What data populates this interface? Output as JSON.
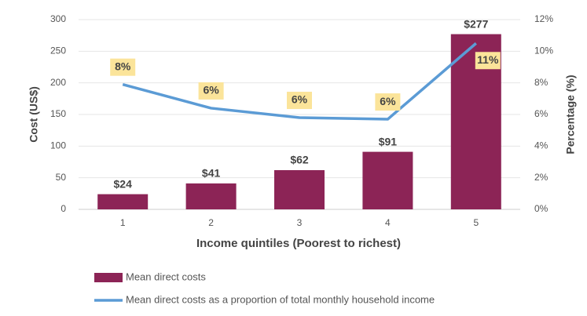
{
  "chart_data": {
    "type": "combo",
    "categories": [
      "1",
      "2",
      "3",
      "4",
      "5"
    ],
    "x_label": "Income quintiles (Poorest to richest)",
    "y_label": "Cost (US$)",
    "y2_label": "Percentage (%)",
    "ylim": [
      0,
      300
    ],
    "yticks": [
      0,
      50,
      100,
      150,
      200,
      250,
      300
    ],
    "y2lim": [
      0,
      12
    ],
    "y2ticks": [
      {
        "value": 0,
        "label": "0%"
      },
      {
        "value": 2,
        "label": "2%"
      },
      {
        "value": 4,
        "label": "4%"
      },
      {
        "value": 6,
        "label": "6%"
      },
      {
        "value": 8,
        "label": "8%"
      },
      {
        "value": 10,
        "label": "10%"
      },
      {
        "value": 12,
        "label": "12%"
      }
    ],
    "grid": true,
    "series": [
      {
        "name": "Mean direct costs",
        "type": "bar",
        "color": "#8c2456",
        "values": [
          24,
          41,
          62,
          91,
          277
        ],
        "value_labels": [
          "$24",
          "$41",
          "$62",
          "$91",
          "$277"
        ]
      },
      {
        "name": "Mean direct costs as a proportion of total monthly household income",
        "type": "line",
        "axis": "y2",
        "color": "#5b9bd5",
        "values": [
          7.9,
          6.4,
          5.8,
          5.7,
          10.5
        ],
        "value_labels": [
          "8%",
          "6%",
          "6%",
          "6%",
          "11%"
        ]
      }
    ]
  }
}
